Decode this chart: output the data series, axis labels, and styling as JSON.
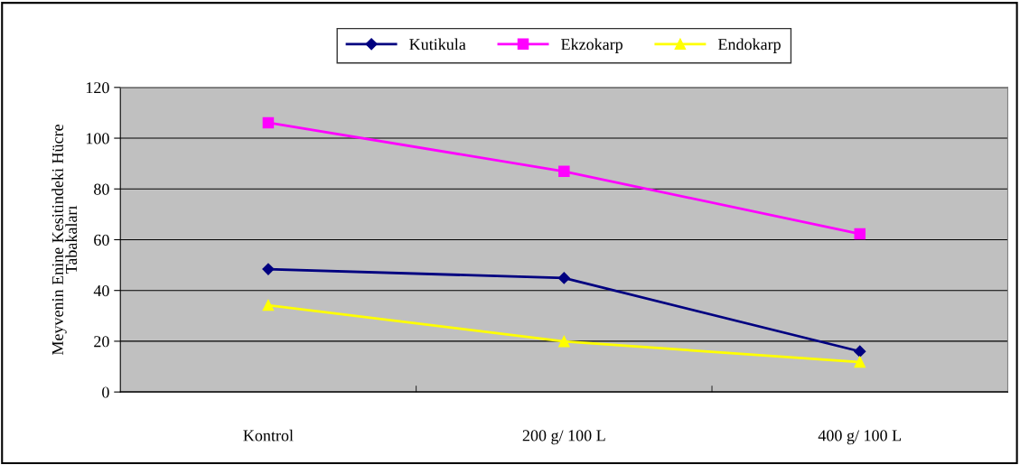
{
  "chart_data": {
    "type": "line",
    "ylabel": "Meyvenin Enine Kesitindeki Hücre\nTabakaları",
    "categories": [
      "Kontrol",
      "200 g/ 100 L",
      "400 g/ 100 L"
    ],
    "series": [
      {
        "name": "Kutikula",
        "color": "#000080",
        "marker": "diamond",
        "values": [
          48.4,
          44.9,
          16.0
        ]
      },
      {
        "name": "Ekzokarp",
        "color": "#ff00ff",
        "marker": "square",
        "values": [
          106.1,
          86.9,
          62.3
        ]
      },
      {
        "name": "Endokarp",
        "color": "#ffff00",
        "marker": "triangle",
        "values": [
          34.2,
          19.9,
          11.8
        ]
      }
    ],
    "ylim": [
      0,
      120
    ],
    "yticks": [
      0,
      20,
      40,
      60,
      80,
      100,
      120
    ],
    "grid": "y",
    "legend": "top"
  }
}
